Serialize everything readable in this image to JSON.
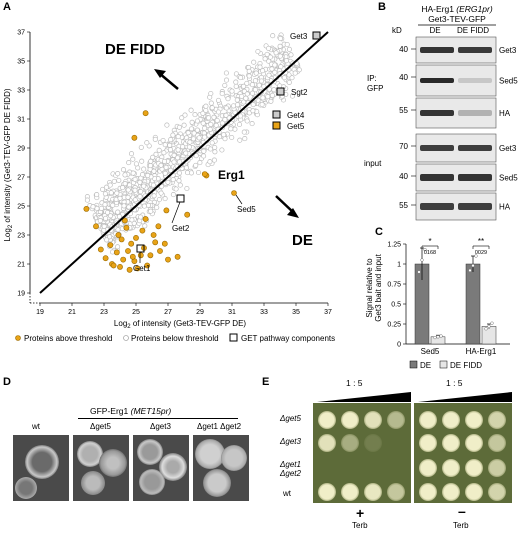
{
  "panels": {
    "a": "A",
    "b": "B",
    "c": "C",
    "d": "D",
    "e": "E"
  },
  "panel_a": {
    "label_top": "DE FIDD",
    "label_bottom": "DE",
    "xlabel_pre": "Log",
    "xlabel_sub": "2",
    "xlabel_post": " of intensity (Get3-TEV-GFP DE)",
    "ylabel_pre": "Log",
    "ylabel_sub": "2",
    "ylabel_post": " of intensity (Get3-TEV-GFP DE FIDD)",
    "xticks": [
      "19",
      "21",
      "23",
      "25",
      "27",
      "29",
      "31",
      "33",
      "35",
      "37"
    ],
    "yticks": [
      "19",
      "21",
      "23",
      "25",
      "27",
      "29",
      "31",
      "33",
      "35",
      "37"
    ],
    "annotations": {
      "get3": "Get3",
      "sgt2": "Sgt2",
      "get4": "Get4",
      "get5": "Get5",
      "erg1": "Erg1",
      "sed5": "Sed5",
      "get2": "Get2",
      "get1": "Get1"
    },
    "legend": {
      "above": "Proteins above threshold",
      "below": "Proteins below threshold",
      "get": "GET pathway components"
    },
    "colors": {
      "above": "#e8a317",
      "below": "#bdbdbd",
      "get": "#222222"
    }
  },
  "panel_b": {
    "title_line1_pre": "HA-Erg1 ",
    "title_line1_italic": "(ERG1pr)",
    "title_line2": "Get3-TEV-GFP",
    "kd": "kD",
    "col_de": "DE",
    "col_fidd": "DE FIDD",
    "ip_label_1": "IP:",
    "ip_label_2": "GFP",
    "input_label": "input",
    "markers": [
      "40",
      "40",
      "55",
      "70",
      "40",
      "55"
    ],
    "rows": [
      "Get3",
      "Sed5",
      "HA",
      "Get3",
      "Sed5",
      "HA"
    ]
  },
  "panel_c": {
    "ylabel_1": "Signal relative to",
    "ylabel_2": "Get3 bait and input",
    "yticks": [
      "0",
      "0.25",
      "0.5",
      "0.75",
      "1",
      "1.25"
    ],
    "groups": [
      "Sed5",
      "HA-Erg1"
    ],
    "sig": [
      {
        "stars": "*",
        "p": "0168"
      },
      {
        "stars": "**",
        "p": "0029"
      }
    ],
    "legend": {
      "de": "DE",
      "fidd": "DE FIDD"
    },
    "colors": {
      "de": "#7a7a7a",
      "fidd": "#e6e6e6"
    }
  },
  "chart_data": {
    "type": "bar",
    "categories": [
      "Sed5",
      "HA-Erg1"
    ],
    "series": [
      {
        "name": "DE",
        "values": [
          1.0,
          1.0
        ]
      },
      {
        "name": "DE FIDD",
        "values": [
          0.09,
          0.22
        ]
      }
    ],
    "errors": [
      {
        "name": "DE",
        "values": [
          0.2,
          0.1
        ]
      },
      {
        "name": "DE FIDD",
        "values": [
          0.02,
          0.03
        ]
      }
    ],
    "points": [
      {
        "name": "DE",
        "values": [
          [
            0.9,
            1.05,
            1.18
          ],
          [
            0.92,
            0.98,
            1.1
          ]
        ]
      },
      {
        "name": "DE FIDD",
        "values": [
          [
            0.08,
            0.09,
            0.1
          ],
          [
            0.19,
            0.22,
            0.26
          ]
        ]
      }
    ],
    "ylim": [
      0,
      1.25
    ],
    "ylabel": "Signal relative to Get3 bait and input",
    "legend_position": "bottom"
  },
  "panel_d": {
    "title_pre": "GFP-Erg1 ",
    "title_italic": "(MET15pr)",
    "strains": [
      "wt",
      "Δget5",
      "Δget3",
      "Δget1 Δget2"
    ]
  },
  "panel_e": {
    "dilution": "1 : 5",
    "strains": [
      "Δget5",
      "Δget3",
      "Δget1",
      "Δget2",
      "wt"
    ],
    "plus": "+",
    "minus": "–",
    "terb": "Terb",
    "growth_plus": [
      [
        1,
        1,
        0.9,
        0.6
      ],
      [
        0.9,
        0.5,
        0.15,
        0
      ],
      [
        0,
        0,
        0,
        0
      ],
      [
        1,
        1,
        0.95,
        0.7
      ]
    ],
    "growth_minus": [
      [
        1,
        1,
        1,
        0.8
      ],
      [
        1,
        1,
        1,
        0.7
      ],
      [
        1,
        1,
        1,
        0.75
      ],
      [
        1,
        1,
        1,
        0.8
      ]
    ]
  }
}
